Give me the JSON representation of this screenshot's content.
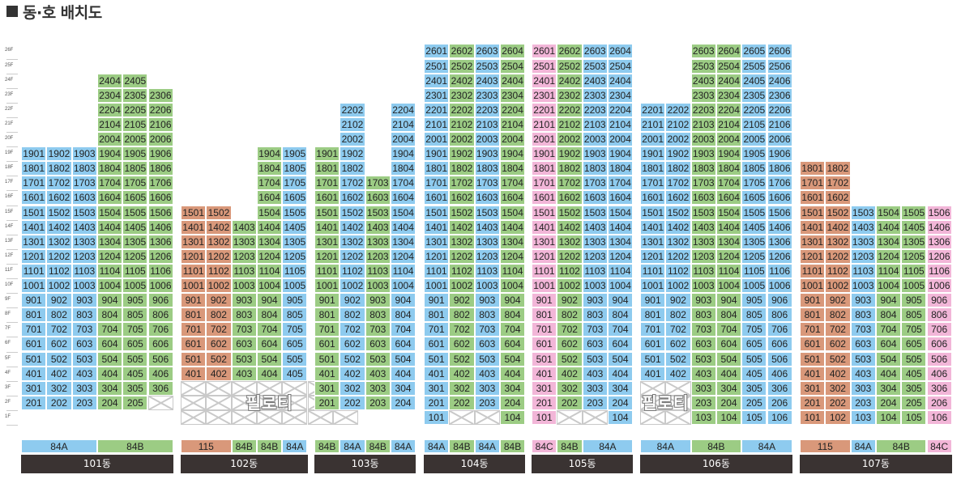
{
  "title": "동·호 배치도",
  "floor_labels": [
    "26F",
    "25F",
    "24F",
    "23F",
    "22F",
    "21F",
    "20F",
    "19F",
    "18F",
    "17F",
    "16F",
    "15F",
    "14F",
    "13F",
    "12F",
    "11F",
    "10F",
    "9F",
    "8F",
    "7F",
    "6F",
    "5F",
    "4F",
    "3F",
    "2F",
    "1F"
  ],
  "colors": {
    "84A": "#8ecbef",
    "84B": "#9ccc84",
    "84C": "#f2b6d8",
    "115": "#d9987a",
    "bldg": "#3a3332",
    "x": "#c9c9c9"
  },
  "pilotis_text": "필로티",
  "buildings": [
    {
      "name": "101동",
      "cols": [
        {
          "type": "84A",
          "unit": 1,
          "bottom": 2,
          "top": 19,
          "x": []
        },
        {
          "type": "84A",
          "unit": 2,
          "bottom": 2,
          "top": 19,
          "x": []
        },
        {
          "type": "84A",
          "unit": 3,
          "bottom": 2,
          "top": 19,
          "x": []
        },
        {
          "type": "84B",
          "unit": 4,
          "bottom": 2,
          "top": 24,
          "x": []
        },
        {
          "type": "84B",
          "unit": 5,
          "bottom": 2,
          "top": 24,
          "x": []
        },
        {
          "type": "84B",
          "unit": 6,
          "bottom": 3,
          "top": 23,
          "x": [
            2
          ]
        }
      ],
      "types": [
        {
          "label": "84A",
          "type": "84A",
          "span": 3
        },
        {
          "label": "84B",
          "type": "84B",
          "span": 3
        }
      ]
    },
    {
      "name": "102동",
      "pilotis": {
        "from": 0,
        "to": 6
      },
      "cols": [
        {
          "type": "115",
          "unit": 1,
          "bottom": 4,
          "top": 15,
          "x": []
        },
        {
          "type": "115",
          "unit": 2,
          "bottom": 4,
          "top": 15,
          "x": []
        },
        {
          "type": "84B",
          "unit": 3,
          "bottom": 4,
          "top": 14,
          "x": []
        },
        {
          "type": "84B",
          "unit": 4,
          "bottom": 4,
          "top": 19,
          "x": []
        },
        {
          "type": "84A",
          "unit": 5,
          "bottom": 4,
          "top": 19,
          "x": []
        }
      ],
      "types": [
        {
          "label": "115",
          "type": "115",
          "span": 2
        },
        {
          "label": "84B",
          "type": "84B",
          "span": 1
        },
        {
          "label": "84B",
          "type": "84B",
          "span": 1
        },
        {
          "label": "84A",
          "type": "84A",
          "span": 1
        }
      ]
    },
    {
      "name": "103동",
      "cols": [
        {
          "type": "84B",
          "unit": 1,
          "bottom": 2,
          "top": 19,
          "x": []
        },
        {
          "type": "84A",
          "unit": 2,
          "bottom": 2,
          "top": 22,
          "x": []
        },
        {
          "type": "84B",
          "unit": 3,
          "bottom": 2,
          "top": 17,
          "x": []
        },
        {
          "type": "84A",
          "unit": 4,
          "bottom": 2,
          "top": 22,
          "x": []
        }
      ],
      "types": [
        {
          "label": "84B",
          "type": "84B",
          "span": 1
        },
        {
          "label": "84A",
          "type": "84A",
          "span": 1
        },
        {
          "label": "84B",
          "type": "84B",
          "span": 1
        },
        {
          "label": "84A",
          "type": "84A",
          "span": 1
        }
      ]
    },
    {
      "name": "104동",
      "cols": [
        {
          "type": "84A",
          "unit": 1,
          "bottom": 1,
          "top": 26,
          "x": []
        },
        {
          "type": "84B",
          "unit": 2,
          "bottom": 2,
          "top": 26,
          "x": [
            1
          ]
        },
        {
          "type": "84A",
          "unit": 3,
          "bottom": 2,
          "top": 26,
          "x": [
            1
          ]
        },
        {
          "type": "84B",
          "unit": 4,
          "bottom": 1,
          "top": 26,
          "x": []
        }
      ],
      "types": [
        {
          "label": "84A",
          "type": "84A",
          "span": 1
        },
        {
          "label": "84B",
          "type": "84B",
          "span": 1
        },
        {
          "label": "84A",
          "type": "84A",
          "span": 1
        },
        {
          "label": "84B",
          "type": "84B",
          "span": 1
        }
      ]
    },
    {
      "name": "105동",
      "cols": [
        {
          "type": "84C",
          "unit": 1,
          "bottom": 1,
          "top": 26,
          "x": []
        },
        {
          "type": "84B",
          "unit": 2,
          "bottom": 2,
          "top": 26,
          "x": [
            1
          ]
        },
        {
          "type": "84A",
          "unit": 3,
          "bottom": 2,
          "top": 26,
          "x": [
            1
          ]
        },
        {
          "type": "84A",
          "unit": 4,
          "bottom": 1,
          "top": 26,
          "x": []
        }
      ],
      "types": [
        {
          "label": "84C",
          "type": "84C",
          "span": 1
        },
        {
          "label": "84B",
          "type": "84B",
          "span": 1
        },
        {
          "label": "84A",
          "type": "84A",
          "span": 2
        }
      ]
    },
    {
      "name": "106동",
      "pilotis": {
        "from": 0,
        "to": 1
      },
      "cols": [
        {
          "type": "84A",
          "unit": 1,
          "bottom": 4,
          "top": 22,
          "x": [
            1,
            2,
            3
          ]
        },
        {
          "type": "84A",
          "unit": 2,
          "bottom": 4,
          "top": 22,
          "x": [
            1,
            2,
            3
          ]
        },
        {
          "type": "84B",
          "unit": 3,
          "bottom": 1,
          "top": 26,
          "x": []
        },
        {
          "type": "84B",
          "unit": 4,
          "bottom": 1,
          "top": 26,
          "x": []
        },
        {
          "type": "84A",
          "unit": 5,
          "bottom": 1,
          "top": 26,
          "x": []
        },
        {
          "type": "84A",
          "unit": 6,
          "bottom": 1,
          "top": 26,
          "x": []
        }
      ],
      "types": [
        {
          "label": "84A",
          "type": "84A",
          "span": 2
        },
        {
          "label": "84B",
          "type": "84B",
          "span": 2
        },
        {
          "label": "84A",
          "type": "84A",
          "span": 2
        }
      ]
    },
    {
      "name": "107동",
      "cols": [
        {
          "type": "115",
          "unit": 1,
          "bottom": 1,
          "top": 18,
          "x": []
        },
        {
          "type": "115",
          "unit": 2,
          "bottom": 1,
          "top": 18,
          "x": []
        },
        {
          "type": "84A",
          "unit": 3,
          "bottom": 1,
          "top": 15,
          "x": []
        },
        {
          "type": "84B",
          "unit": 4,
          "bottom": 1,
          "top": 15,
          "x": []
        },
        {
          "type": "84B",
          "unit": 5,
          "bottom": 1,
          "top": 15,
          "x": []
        },
        {
          "type": "84C",
          "unit": 6,
          "bottom": 1,
          "top": 15,
          "x": []
        }
      ],
      "types": [
        {
          "label": "115",
          "type": "115",
          "span": 2
        },
        {
          "label": "84A",
          "type": "84A",
          "span": 1
        },
        {
          "label": "84B",
          "type": "84B",
          "span": 2
        },
        {
          "label": "84C",
          "type": "84C",
          "span": 1
        }
      ]
    }
  ]
}
